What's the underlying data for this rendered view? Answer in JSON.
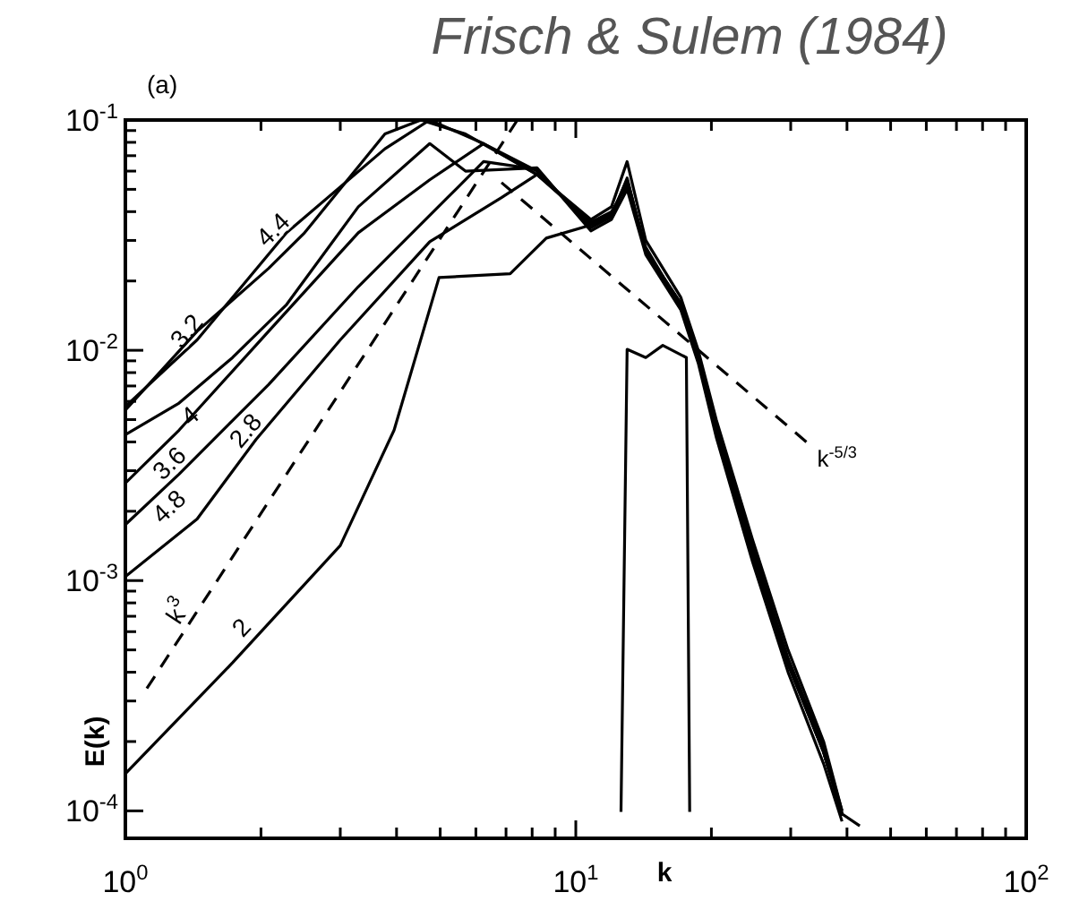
{
  "chart_data": {
    "type": "line",
    "title": "Frisch & Sulem (1984)",
    "xlabel": "k",
    "ylabel": "E(k)",
    "annotations": [
      "(a)"
    ],
    "log": "xy",
    "grid": false,
    "legend": false,
    "marker": "none",
    "xlim": [
      1,
      100
    ],
    "ylim": [
      7.6e-05,
      0.1
    ],
    "xticks": [
      {
        "value": 1,
        "label": "10$^{0}$"
      },
      {
        "value": 2,
        "label": null
      },
      {
        "value": 3,
        "label": null
      },
      {
        "value": 4,
        "label": null
      },
      {
        "value": 5,
        "label": null
      },
      {
        "value": 6,
        "label": null
      },
      {
        "value": 7,
        "label": null
      },
      {
        "value": 8,
        "label": null
      },
      {
        "value": 9,
        "label": null
      },
      {
        "value": 10,
        "label": "10$^{1}$"
      },
      {
        "value": 20,
        "label": null
      },
      {
        "value": 30,
        "label": null
      },
      {
        "value": 40,
        "label": null
      },
      {
        "value": 50,
        "label": null
      },
      {
        "value": 60,
        "label": null
      },
      {
        "value": 70,
        "label": null
      },
      {
        "value": 80,
        "label": null
      },
      {
        "value": 90,
        "label": null
      },
      {
        "value": 100,
        "label": "10$^{2}$"
      }
    ],
    "yticks": [
      {
        "value": 0.0001,
        "label": "10$^{-4}$"
      },
      {
        "value": 0.0002,
        "label": null
      },
      {
        "value": 0.0003,
        "label": null
      },
      {
        "value": 0.0004,
        "label": null
      },
      {
        "value": 0.0005,
        "label": null
      },
      {
        "value": 0.0006,
        "label": null
      },
      {
        "value": 0.0007,
        "label": null
      },
      {
        "value": 0.0008,
        "label": null
      },
      {
        "value": 0.0009,
        "label": null
      },
      {
        "value": 0.001,
        "label": "10$^{-3}$"
      },
      {
        "value": 0.002,
        "label": null
      },
      {
        "value": 0.003,
        "label": null
      },
      {
        "value": 0.004,
        "label": null
      },
      {
        "value": 0.005,
        "label": null
      },
      {
        "value": 0.006,
        "label": null
      },
      {
        "value": 0.007,
        "label": null
      },
      {
        "value": 0.008,
        "label": null
      },
      {
        "value": 0.009,
        "label": null
      },
      {
        "value": 0.01,
        "label": "10$^{-2}$"
      },
      {
        "value": 0.02,
        "label": null
      },
      {
        "value": 0.03,
        "label": null
      },
      {
        "value": 0.04,
        "label": null
      },
      {
        "value": 0.05,
        "label": null
      },
      {
        "value": 0.06,
        "label": null
      },
      {
        "value": 0.07,
        "label": null
      },
      {
        "value": 0.08,
        "label": null
      },
      {
        "value": 0.09,
        "label": null
      },
      {
        "value": 0.1,
        "label": "10$^{-1}$"
      }
    ],
    "series": [
      {
        "name": "3.2",
        "color": "#000000",
        "line_style": "solid",
        "x": [
          1,
          1.443,
          2.28,
          3.77,
          4.74,
          6.24,
          8.2,
          10.8,
          12,
          13,
          14.3,
          17.1,
          18.7,
          20.5,
          24.7,
          29.6,
          35.5,
          39
        ],
        "values": [
          0.0057,
          0.0111,
          0.0324,
          0.075,
          0.1,
          0.079,
          0.06,
          0.035,
          0.039,
          0.055,
          0.027,
          0.016,
          0.0093,
          0.0045,
          0.0013,
          0.00044,
          0.00018,
          9.7e-05
        ]
      },
      {
        "name": "4.4",
        "color": "#000000",
        "line_style": "solid",
        "x": [
          1,
          1.443,
          2.08,
          2.5,
          3.77,
          4.53,
          5.69,
          8.2,
          10.8,
          12,
          13,
          14.3,
          17.1,
          18.7,
          20.5,
          24.7,
          29.6,
          35.5,
          39
        ],
        "values": [
          0.0055,
          0.0121,
          0.0227,
          0.0324,
          0.087,
          0.1,
          0.087,
          0.058,
          0.037,
          0.042,
          0.066,
          0.03,
          0.017,
          0.01,
          0.005,
          0.0015,
          0.0005,
          0.0002,
          0.0001
        ]
      },
      {
        "name": "4",
        "color": "#000000",
        "line_style": "solid",
        "x": [
          1,
          1.316,
          1.73,
          2.28,
          3.29,
          4.74,
          5.69,
          8.2,
          10.8,
          12,
          13,
          14.3,
          17.1,
          18.7,
          20.5,
          24.7,
          29.6,
          35.5,
          39
        ],
        "values": [
          0.0043,
          0.0059,
          0.0093,
          0.0158,
          0.042,
          0.079,
          0.06,
          0.062,
          0.033,
          0.037,
          0.05,
          0.026,
          0.015,
          0.0088,
          0.0042,
          0.0012,
          0.0004,
          0.00016,
          9e-05
        ]
      },
      {
        "name": "3.6",
        "color": "#000000",
        "line_style": "solid",
        "x": [
          1,
          1.316,
          2.08,
          3.29,
          4.74,
          6.24,
          8.2,
          10.8,
          12,
          13,
          14.3,
          17.1,
          18.7,
          20.5,
          24.7,
          29.6,
          35.5,
          39
        ],
        "values": [
          0.00265,
          0.0045,
          0.0121,
          0.0324,
          0.055,
          0.079,
          0.058,
          0.036,
          0.04,
          0.052,
          0.028,
          0.0155,
          0.0095,
          0.0047,
          0.0014,
          0.00046,
          0.00019,
          0.0001
        ]
      },
      {
        "name": "4.8",
        "color": "#000000",
        "line_style": "solid",
        "x": [
          1,
          1.316,
          2.08,
          3.29,
          5.19,
          6.24,
          8.2,
          10.8,
          12,
          13,
          14.3,
          17.1,
          18.7,
          20.5,
          24.7,
          29.6,
          35.5,
          39
        ],
        "values": [
          0.00175,
          0.0029,
          0.0071,
          0.0189,
          0.046,
          0.066,
          0.061,
          0.034,
          0.038,
          0.056,
          0.027,
          0.016,
          0.009,
          0.0044,
          0.0013,
          0.00043,
          0.00018,
          9.5e-05
        ]
      },
      {
        "name": "2.8",
        "color": "#000000",
        "line_style": "solid",
        "x": [
          1,
          1.443,
          1.95,
          3,
          4.74,
          6.84,
          8.2,
          10.8,
          12,
          13,
          14.3,
          17.1,
          18.7,
          20.5,
          24.7,
          29.6,
          35.5,
          39
        ],
        "values": [
          0.00104,
          0.00185,
          0.0041,
          0.0111,
          0.0296,
          0.046,
          0.058,
          0.036,
          0.039,
          0.054,
          0.027,
          0.0158,
          0.0092,
          0.0046,
          0.0013,
          0.00045,
          0.00018,
          9.8e-05
        ]
      },
      {
        "name": "2",
        "color": "#000000",
        "line_style": "solid",
        "x": [
          1,
          1.73,
          3,
          3.95,
          4.97,
          7.15,
          8.6,
          10.8,
          12,
          13,
          14.3,
          17.1,
          18.7,
          20.5,
          24.7,
          29.6,
          35.5,
          39,
          42.7
        ],
        "values": [
          0.000145,
          0.00044,
          0.00142,
          0.0045,
          0.0207,
          0.0215,
          0.0307,
          0.035,
          0.038,
          0.055,
          0.027,
          0.0158,
          0.0093,
          0.0045,
          0.0013,
          0.00044,
          0.00018,
          9.7e-05,
          8.6e-05
        ]
      },
      {
        "name": "k$^{3}$",
        "color": "#000000",
        "line_style": "dashed",
        "x": [
          1.116,
          7.42
        ],
        "values": [
          0.00034,
          0.1
        ]
      },
      {
        "name": "k$^{-5/3}$",
        "color": "#000000",
        "line_style": "dashed",
        "x": [
          6.84,
          32.5
        ],
        "values": [
          0.0535,
          0.004
        ]
      },
      {
        "color": "#000000",
        "line_style": "solid",
        "x": [
          12.6,
          13,
          14.3,
          15.6,
          17.6,
          17.9
        ],
        "values": [
          9.9e-05,
          0.0101,
          0.0093,
          0.0105,
          0.0093,
          9.9e-05
        ]
      }
    ]
  }
}
